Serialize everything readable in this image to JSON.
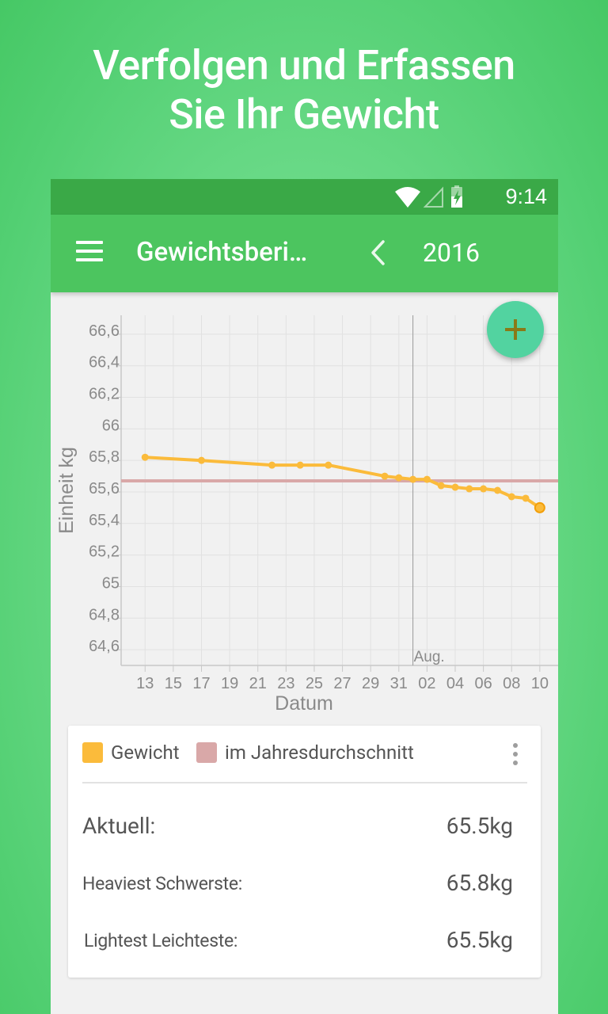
{
  "headline": {
    "line1": "Verfolgen und Erfassen",
    "line2": "Sie Ihr Gewicht"
  },
  "status_bar": {
    "time": "9:14"
  },
  "app_bar": {
    "title": "Gewichtsberi…",
    "year": "2016"
  },
  "colors": {
    "series_weight": "#fbbb3b",
    "series_average": "#d9a8a8",
    "app_bar": "#4cc55f",
    "status_bar": "#3aa947",
    "fab": "#52d3a0",
    "fab_icon": "#8a7a17"
  },
  "chart_data": {
    "type": "line",
    "ylabel": "Einheit kg",
    "xlabel": "Datum",
    "ylim": [
      64.5,
      66.72
    ],
    "y_ticks": [
      64.6,
      64.8,
      65.0,
      65.2,
      65.4,
      65.6,
      65.8,
      66.0,
      66.2,
      66.4,
      66.6
    ],
    "y_tick_labels": [
      "64,6",
      "64,8",
      "65",
      "65,2",
      "65,4",
      "65,6",
      "65,8",
      "66",
      "66,2",
      "66,4",
      "66,6"
    ],
    "x_tick_labels": [
      "13",
      "15",
      "17",
      "19",
      "21",
      "23",
      "25",
      "27",
      "29",
      "31",
      "02",
      "04",
      "06",
      "08",
      "10"
    ],
    "x_tick_days": [
      13,
      15,
      17,
      19,
      21,
      23,
      25,
      27,
      29,
      31,
      33,
      35,
      37,
      39,
      41
    ],
    "xlim": [
      11.3,
      42.3
    ],
    "month_marker": {
      "label": "Aug.",
      "day": 32
    },
    "grid": true,
    "series": [
      {
        "name": "Gewicht",
        "x": [
          13,
          17,
          22,
          24,
          26,
          30,
          31,
          32,
          33,
          34,
          35,
          36,
          37,
          38,
          39,
          40,
          41
        ],
        "values": [
          65.82,
          65.8,
          65.77,
          65.77,
          65.77,
          65.7,
          65.69,
          65.68,
          65.68,
          65.64,
          65.63,
          65.62,
          65.62,
          65.61,
          65.57,
          65.56,
          65.5
        ]
      },
      {
        "name": "im Jahresdurchschnitt",
        "constant": 65.67
      }
    ]
  },
  "legend": {
    "item1": "Gewicht",
    "item2": "im Jahresdurchschnitt"
  },
  "stats": {
    "current_label": "Aktuell:",
    "current_value": "65.5kg",
    "heaviest_label": "Heaviest  Schwerste:",
    "heaviest_value": "65.8kg",
    "lightest_label": "Lightest  Leichteste:",
    "lightest_value": "65.5kg"
  }
}
